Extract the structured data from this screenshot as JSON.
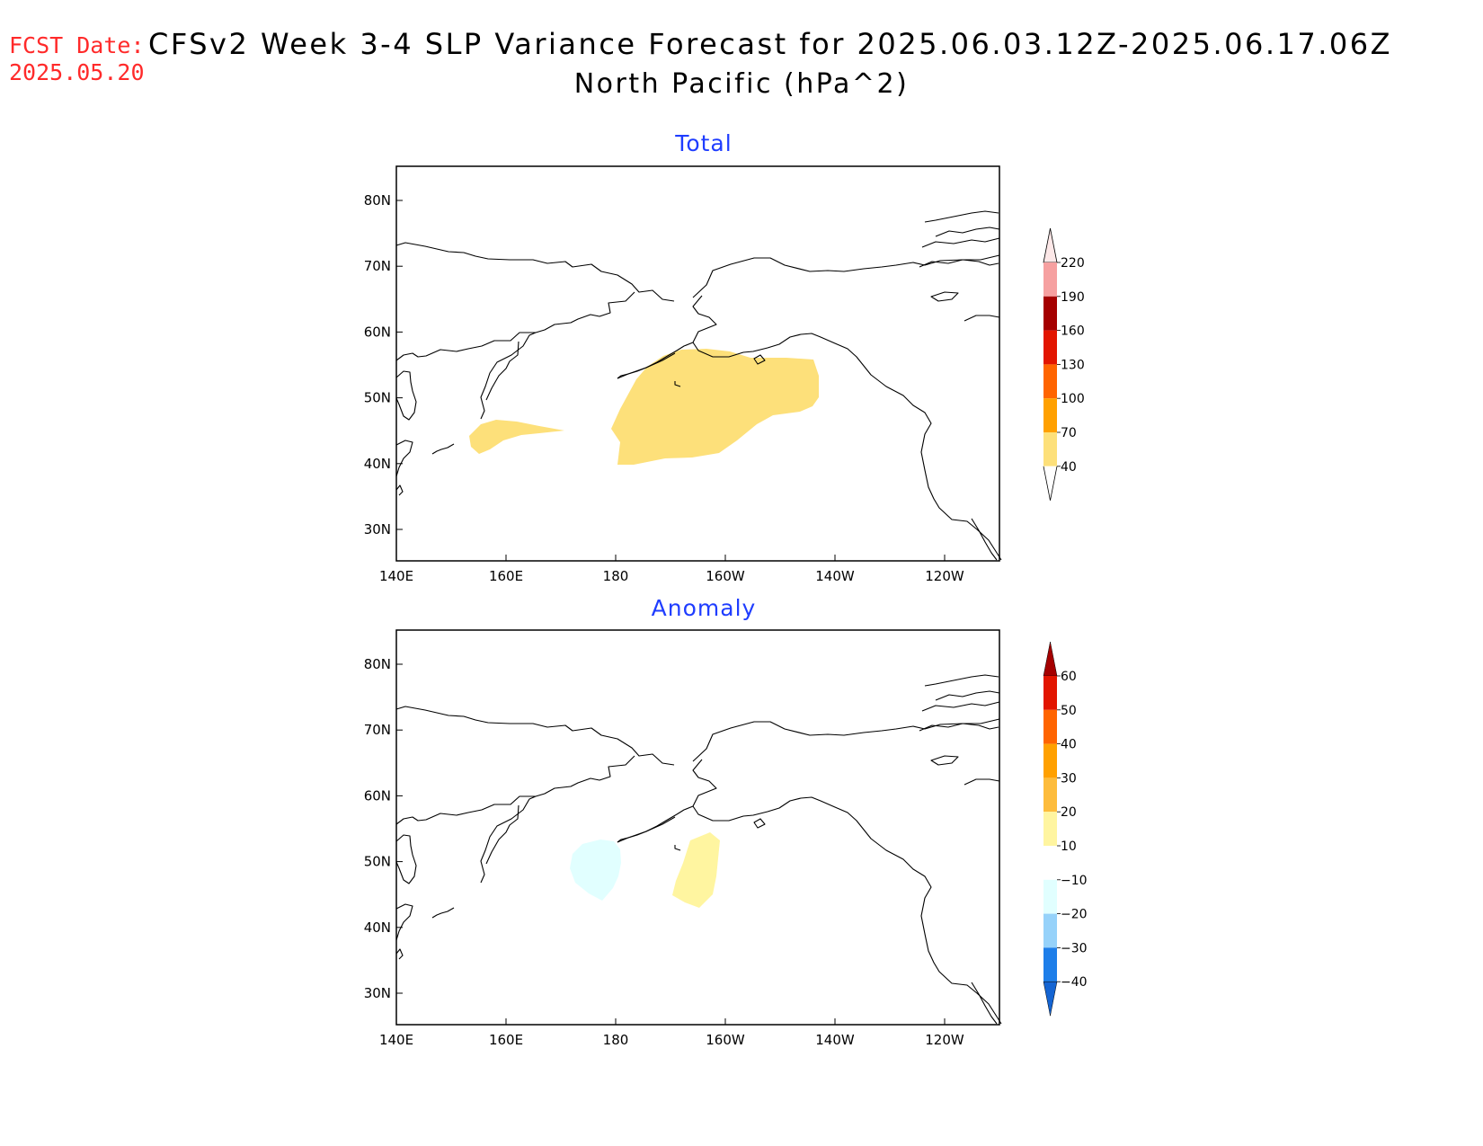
{
  "header": {
    "fcst_label": "FCST Date:",
    "fcst_date": "2025.05.20",
    "title": "CFSv2 Week 3-4 SLP Variance Forecast for 2025.06.03.12Z-2025.06.17.06Z",
    "subtitle": "North Pacific (hPa^2)"
  },
  "panels": {
    "total": {
      "title": "Total"
    },
    "anomaly": {
      "title": "Anomaly"
    }
  },
  "axes": {
    "lat_labels": [
      "80N",
      "70N",
      "60N",
      "50N",
      "40N",
      "30N"
    ],
    "lon_labels": [
      "140E",
      "160E",
      "180",
      "160W",
      "140W",
      "120W"
    ]
  },
  "colorbars": {
    "total": {
      "labels": [
        "220",
        "190",
        "160",
        "130",
        "100",
        "70",
        "40"
      ],
      "colors": [
        "#f6a0a0",
        "#a50000",
        "#e21500",
        "#ff6400",
        "#ffa000",
        "#fde07a",
        "#ffffff"
      ]
    },
    "anomaly": {
      "labels": [
        "60",
        "50",
        "40",
        "30",
        "20",
        "10",
        "−10",
        "−20",
        "−30",
        "−40"
      ],
      "colors": [
        "#a50000",
        "#e21500",
        "#ff6400",
        "#ffa000",
        "#fdbc3c",
        "#fff5a0",
        "#ffffff",
        "#e1ffff",
        "#96d2fa",
        "#1e7ee9",
        "#1464d2"
      ]
    }
  },
  "chart_data": [
    {
      "type": "map",
      "title": "Total",
      "units": "hPa^2",
      "region": "North Pacific",
      "lon_range": [
        "140E",
        "110W"
      ],
      "lat_range": [
        "25N",
        "85N"
      ],
      "contour_levels": [
        40,
        70,
        100,
        130,
        160,
        190,
        220
      ],
      "shaded_regions": [
        {
          "range": "40-70",
          "color": "#fde07a",
          "approx_location": "Gulf of Alaska / Aleutians, ~40N-57N, 178E-143W"
        },
        {
          "range": "40-70",
          "color": "#fde07a",
          "approx_location": "~41N-46N, 153E-170E"
        }
      ]
    },
    {
      "type": "map",
      "title": "Anomaly",
      "units": "hPa^2",
      "region": "North Pacific",
      "lon_range": [
        "140E",
        "110W"
      ],
      "lat_range": [
        "25N",
        "85N"
      ],
      "contour_levels": [
        -40,
        -30,
        -20,
        -10,
        10,
        20,
        30,
        40,
        50,
        60
      ],
      "shaded_regions": [
        {
          "range": "-20 to -10",
          "color": "#e1ffff",
          "approx_location": "~44N-53N, 172E-179E"
        },
        {
          "range": "10-20",
          "color": "#fff5a0",
          "approx_location": "~43N-55N, 170W-162W"
        }
      ]
    }
  ]
}
